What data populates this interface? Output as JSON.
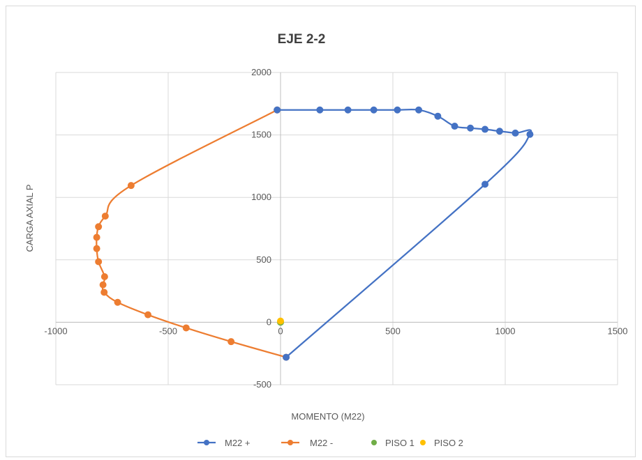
{
  "chart_data": {
    "type": "scatter",
    "title": "EJE 2-2",
    "xlabel": "MOMENTO (M22)",
    "ylabel": "CARGA AXIAL P",
    "xlim": [
      -1000,
      1500
    ],
    "ylim": [
      -500,
      2000
    ],
    "x_ticks": [
      "-1000",
      "-500",
      "0",
      "500",
      "1000",
      "1500"
    ],
    "y_ticks": [
      "-500",
      "0",
      "500",
      "1000",
      "1500",
      "2000"
    ],
    "grid": true,
    "legend_position": "bottom",
    "series": [
      {
        "name": "M22 +",
        "color": "#4472C4",
        "style": "smooth-line-markers",
        "points": [
          [
            -15,
            1700
          ],
          [
            175,
            1700
          ],
          [
            300,
            1700
          ],
          [
            415,
            1700
          ],
          [
            520,
            1700
          ],
          [
            615,
            1700
          ],
          [
            700,
            1650
          ],
          [
            775,
            1570
          ],
          [
            845,
            1555
          ],
          [
            910,
            1545
          ],
          [
            975,
            1530
          ],
          [
            1045,
            1515
          ],
          [
            1110,
            1505
          ],
          [
            910,
            1105
          ],
          [
            25,
            -280
          ]
        ]
      },
      {
        "name": "M22 -",
        "color": "#ED7D31",
        "style": "smooth-line-markers",
        "points": [
          [
            -15,
            1700
          ],
          [
            -665,
            1095
          ],
          [
            -780,
            850
          ],
          [
            -810,
            765
          ],
          [
            -818,
            680
          ],
          [
            -818,
            590
          ],
          [
            -810,
            485
          ],
          [
            -783,
            365
          ],
          [
            -790,
            300
          ],
          [
            -785,
            240
          ],
          [
            -725,
            160
          ],
          [
            -590,
            60
          ],
          [
            -420,
            -45
          ],
          [
            -220,
            -155
          ],
          [
            25,
            -280
          ]
        ]
      },
      {
        "name": "PISO 1",
        "color": "#70AD47",
        "style": "markers",
        "points": [
          [
            0,
            0
          ]
        ]
      },
      {
        "name": "PISO 2",
        "color": "#FFC000",
        "style": "markers",
        "points": [
          [
            0,
            10
          ]
        ]
      }
    ]
  }
}
